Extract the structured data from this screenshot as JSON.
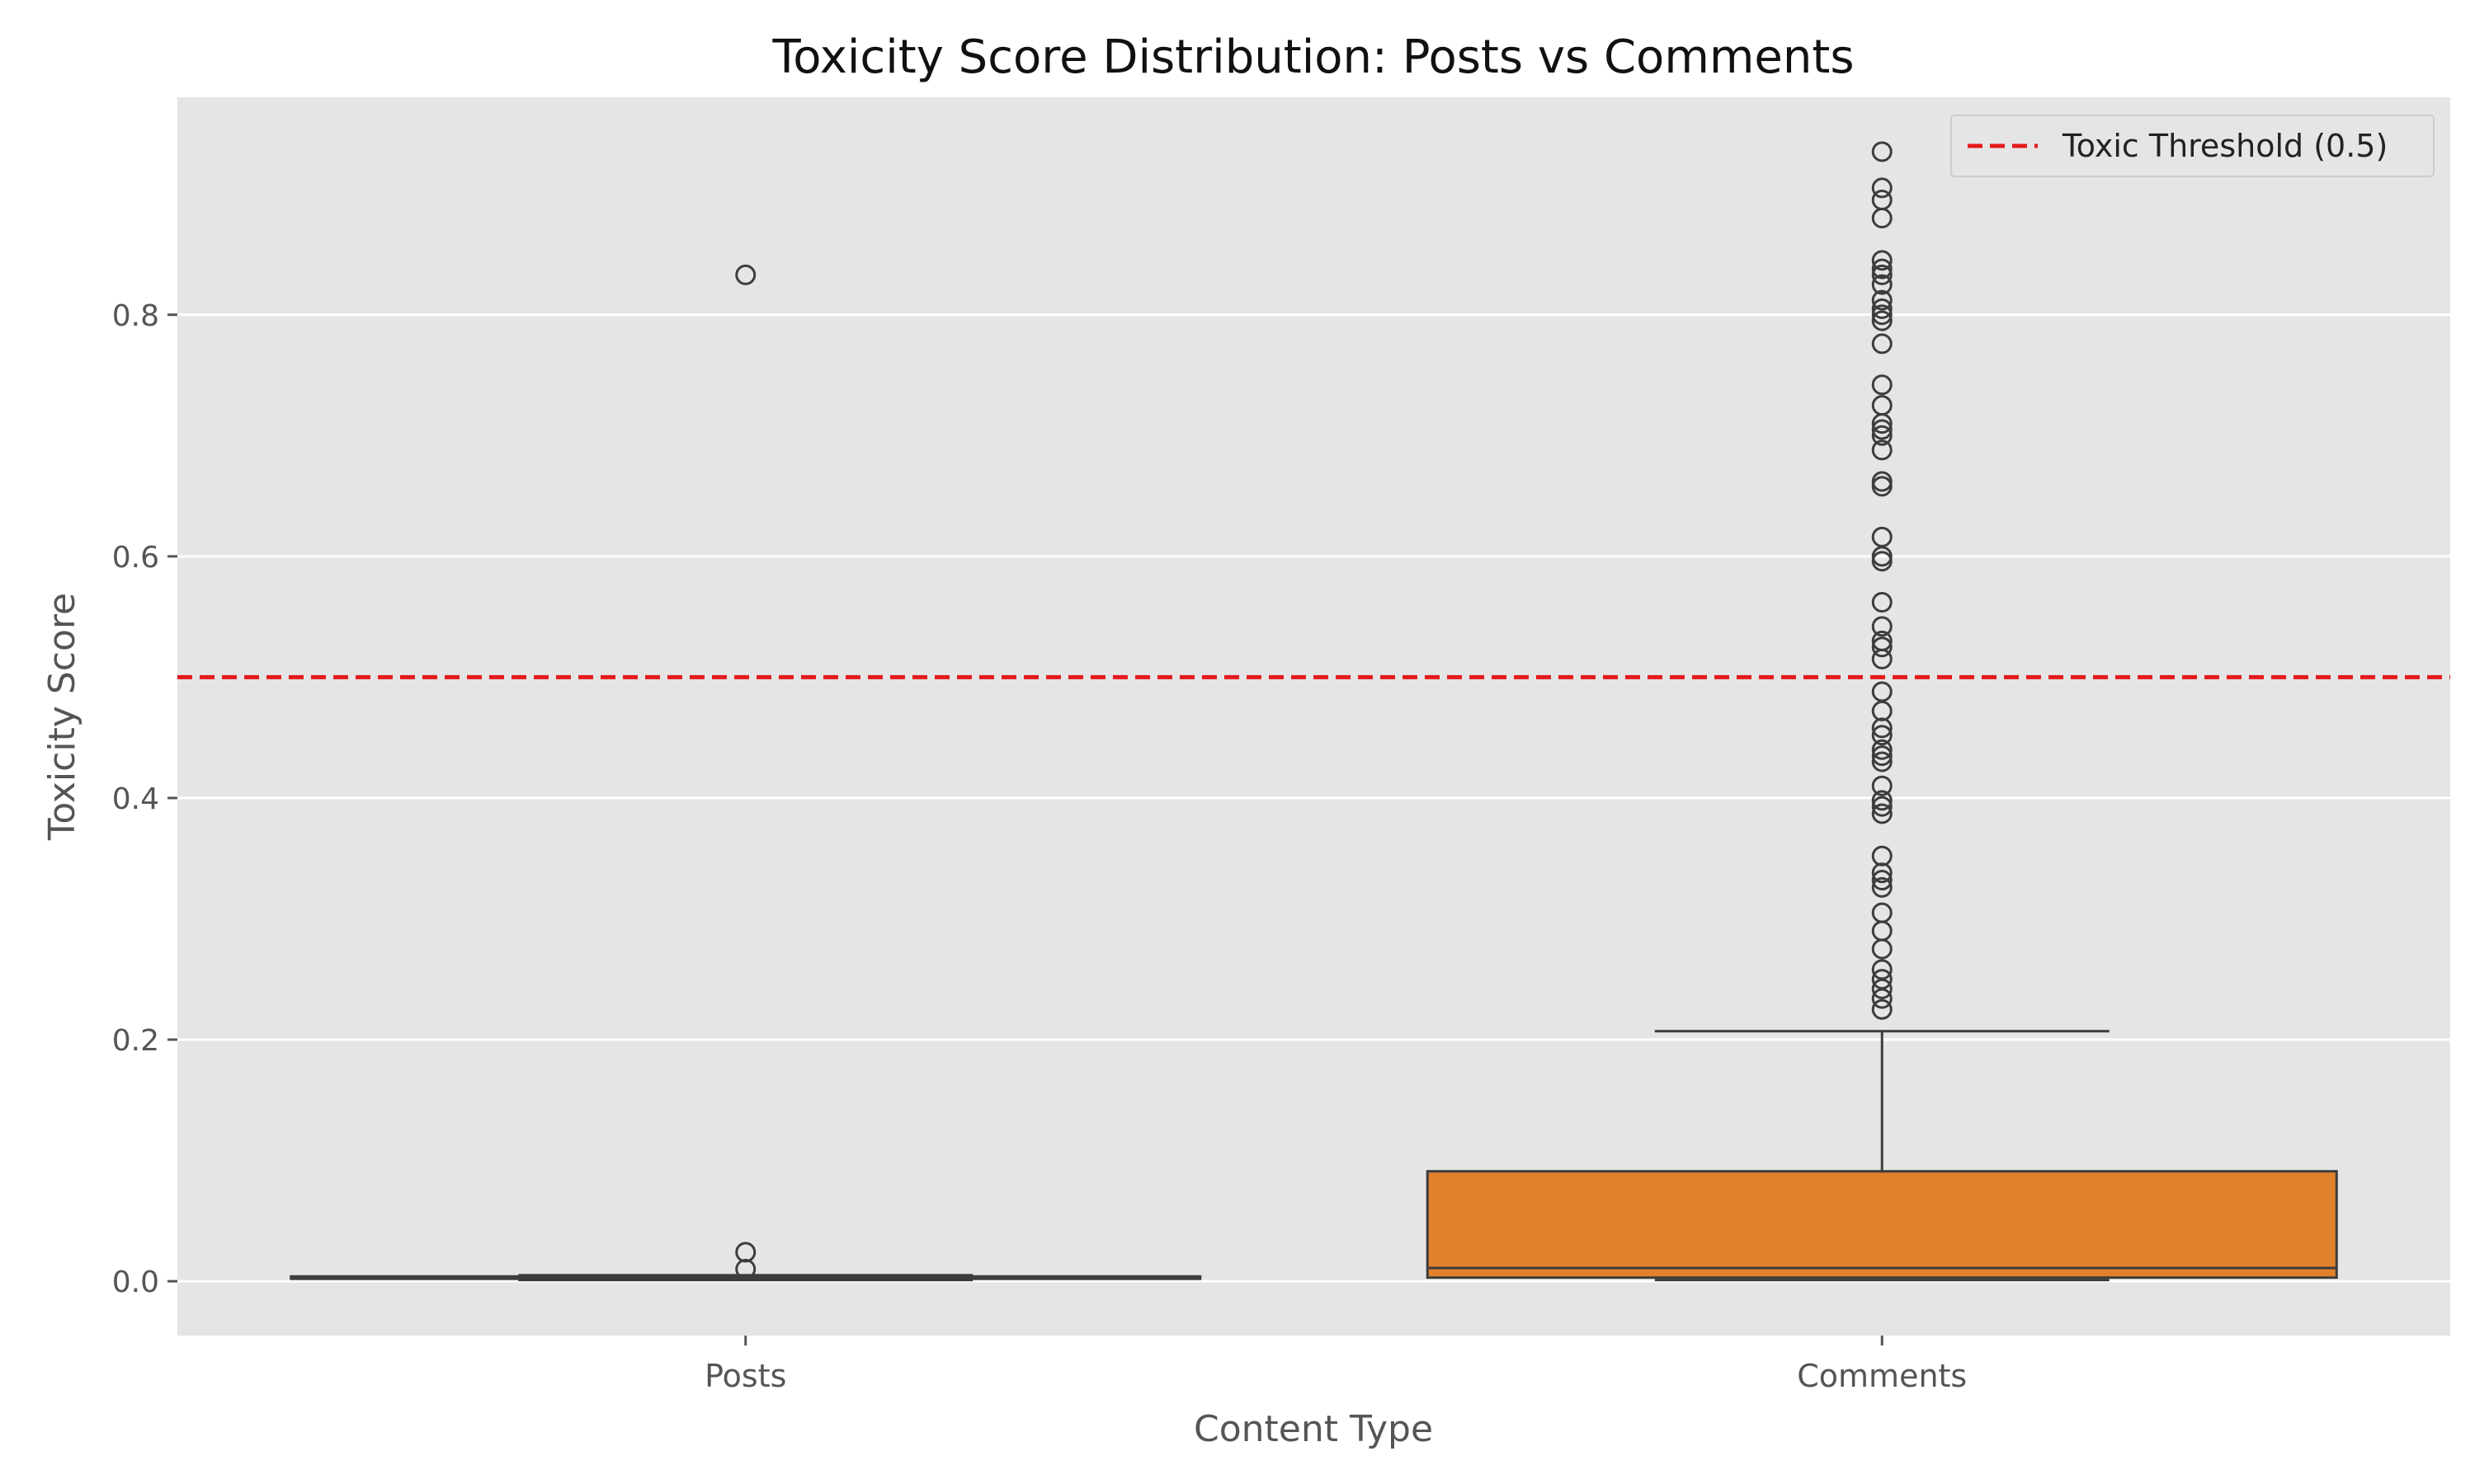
{
  "chart_data": {
    "type": "box",
    "title": "Toxicity Score Distribution: Posts vs Comments",
    "xlabel": "Content Type",
    "ylabel": "Toxicity Score",
    "categories": [
      "Posts",
      "Comments"
    ],
    "ylim": [
      -0.045,
      0.98
    ],
    "yticks": [
      0.0,
      0.2,
      0.4,
      0.6,
      0.8
    ],
    "ytick_labels": [
      "0.0",
      "0.2",
      "0.4",
      "0.6",
      "0.8"
    ],
    "grid": true,
    "legend_position": "top-right",
    "threshold": {
      "value": 0.5,
      "label": "Toxic Threshold (0.5)",
      "color": "#e41a1c",
      "style": "dashed"
    },
    "boxes": [
      {
        "category": "Posts",
        "color": "#3b75af",
        "whisker_low": 0.001,
        "q1": 0.002,
        "median": 0.003,
        "q3": 0.004,
        "whisker_high": 0.005,
        "outliers": [
          0.833,
          0.024,
          0.01
        ]
      },
      {
        "category": "Comments",
        "color": "#e1812c",
        "whisker_low": 0.001,
        "q1": 0.003,
        "median": 0.011,
        "q3": 0.091,
        "whisker_high": 0.207,
        "outliers": [
          0.935,
          0.905,
          0.895,
          0.88,
          0.845,
          0.838,
          0.833,
          0.825,
          0.812,
          0.805,
          0.8,
          0.795,
          0.776,
          0.742,
          0.725,
          0.71,
          0.705,
          0.7,
          0.688,
          0.662,
          0.658,
          0.616,
          0.6,
          0.596,
          0.562,
          0.542,
          0.53,
          0.525,
          0.515,
          0.488,
          0.472,
          0.458,
          0.452,
          0.44,
          0.435,
          0.43,
          0.41,
          0.398,
          0.393,
          0.387,
          0.352,
          0.338,
          0.332,
          0.326,
          0.305,
          0.29,
          0.275,
          0.258,
          0.25,
          0.242,
          0.234,
          0.225
        ]
      }
    ]
  }
}
